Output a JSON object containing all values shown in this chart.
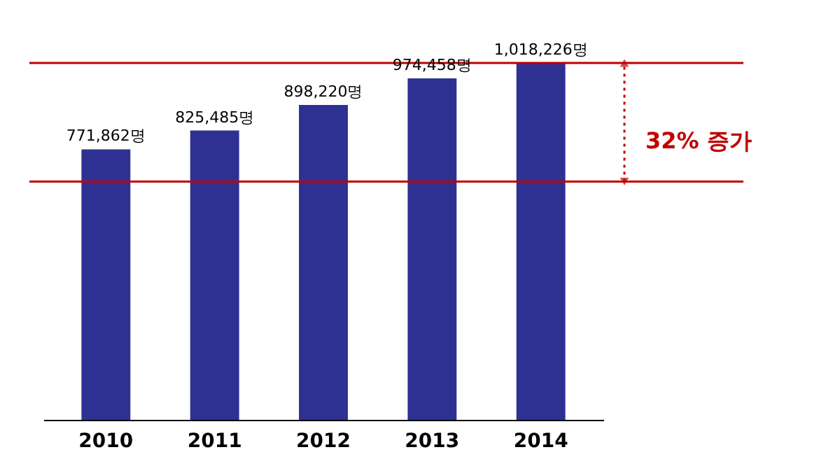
{
  "chart_data": {
    "type": "bar",
    "categories": [
      "2010",
      "2011",
      "2012",
      "2013",
      "2014"
    ],
    "values": [
      771862,
      825485,
      898220,
      974458,
      1018226
    ],
    "value_labels": [
      "771,862명",
      "825,485명",
      "898,220명",
      "974,458명",
      "1,018,226명"
    ],
    "color": "#2e3192",
    "ylim": [
      0,
      1018226
    ],
    "tick_labels": "x",
    "grid": false,
    "ref_lines": [
      {
        "axis": "y",
        "value": 1018226,
        "color": "#c00000"
      },
      {
        "axis": "y",
        "value": 680000,
        "color": "#c00000"
      }
    ],
    "annotations": [
      "32% 증가"
    ]
  }
}
